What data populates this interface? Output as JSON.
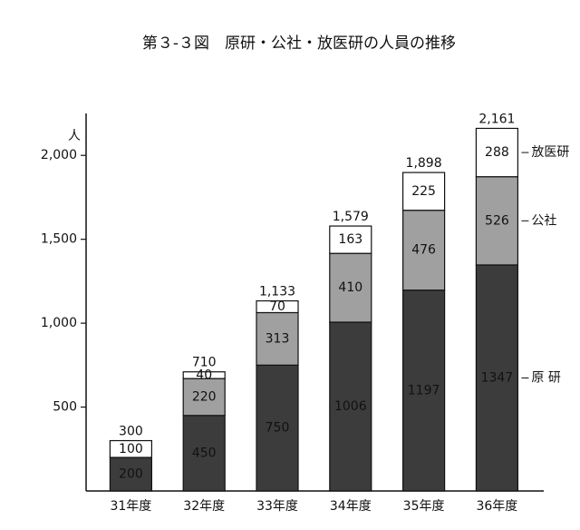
{
  "chart_data": {
    "type": "stacked_bar",
    "title": "第３-３図　原研・公社・放医研の人員の推移",
    "y_unit": "人",
    "categories": [
      "31年度",
      "32年度",
      "33年度",
      "34年度",
      "35年度",
      "36年度"
    ],
    "series": [
      {
        "name": "原 研",
        "color": "#3c3c3c",
        "values": [
          200,
          450,
          750,
          1006,
          1197,
          1347
        ]
      },
      {
        "name": "公社",
        "color": "#a0a0a0",
        "values": [
          null,
          220,
          313,
          410,
          476,
          526
        ]
      },
      {
        "name": "放医研",
        "color": "#ffffff",
        "values": [
          100,
          40,
          70,
          163,
          225,
          288
        ]
      }
    ],
    "totals": {
      "values": [
        300,
        710,
        1133,
        1579,
        1898,
        2161
      ],
      "value_labels": [
        "300",
        "710",
        "1,133",
        "1,579",
        "1,898",
        "2,161"
      ]
    },
    "ylim": [
      0,
      2250
    ],
    "yticks": [
      500,
      {
        "value": 1000,
        "label": "1,000"
      },
      {
        "value": 1500,
        "label": "1,500"
      },
      {
        "value": 2000,
        "label": "2,000"
      }
    ]
  }
}
